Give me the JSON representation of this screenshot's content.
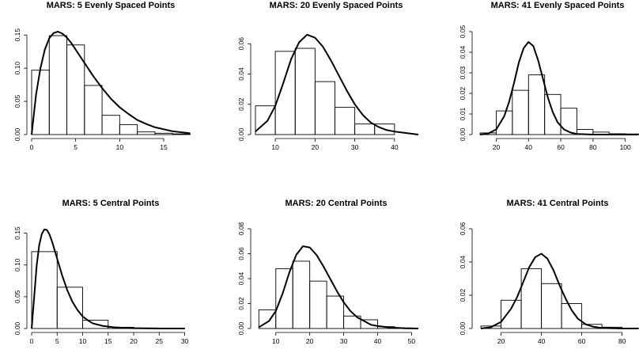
{
  "chart_data": [
    {
      "type": "bar",
      "title": "MARS: 5 Evenly Spaced Points",
      "xlim": [
        0,
        18.5
      ],
      "ylim": [
        0,
        0.155
      ],
      "xticks": [
        0,
        5,
        10,
        15
      ],
      "xtick_labels": [
        "0",
        "5",
        "10",
        "15"
      ],
      "yticks": [
        0,
        0.05,
        0.1,
        0.15
      ],
      "ytick_labels": [
        "0.00",
        "0.05",
        "0.10",
        "0.15"
      ],
      "histogram": {
        "bin_edges": [
          0,
          2,
          4,
          6,
          8,
          10,
          12,
          14,
          16,
          18
        ],
        "density": [
          0.097,
          0.149,
          0.135,
          0.074,
          0.029,
          0.015,
          0.004,
          0.002,
          0.001
        ]
      },
      "curve": {
        "x": [
          0,
          0.5,
          1,
          1.5,
          2,
          2.5,
          3,
          3.5,
          4,
          4.5,
          5,
          6,
          7,
          8,
          9,
          10,
          11,
          12,
          13,
          14,
          16,
          18
        ],
        "y": [
          0,
          0.06,
          0.1,
          0.128,
          0.145,
          0.153,
          0.155,
          0.152,
          0.146,
          0.138,
          0.128,
          0.108,
          0.088,
          0.07,
          0.054,
          0.041,
          0.031,
          0.022,
          0.016,
          0.011,
          0.005,
          0.002
        ]
      }
    },
    {
      "type": "bar",
      "title": "MARS: 20 Evenly Spaced Points",
      "xlim": [
        5,
        46
      ],
      "ylim": [
        0,
        0.068
      ],
      "xticks": [
        10,
        20,
        30,
        40
      ],
      "xtick_labels": [
        "10",
        "20",
        "30",
        "40"
      ],
      "yticks": [
        0,
        0.02,
        0.04,
        0.06
      ],
      "ytick_labels": [
        "0.00",
        "0.02",
        "0.04",
        "0.06"
      ],
      "histogram": {
        "bin_edges": [
          5,
          10,
          15,
          20,
          25,
          30,
          35,
          40
        ],
        "density": [
          0.019,
          0.055,
          0.057,
          0.035,
          0.018,
          0.007,
          0.007
        ]
      },
      "curve": {
        "x": [
          5,
          8,
          10,
          12,
          14,
          16,
          18,
          20,
          22,
          24,
          26,
          28,
          30,
          32,
          34,
          36,
          38,
          40,
          43,
          46
        ],
        "y": [
          0.002,
          0.009,
          0.019,
          0.034,
          0.05,
          0.061,
          0.066,
          0.064,
          0.058,
          0.049,
          0.039,
          0.029,
          0.02,
          0.013,
          0.008,
          0.005,
          0.003,
          0.002,
          0.001,
          0.0
        ]
      }
    },
    {
      "type": "bar",
      "title": "MARS: 41 Evenly Spaced Points",
      "xlim": [
        8,
        108
      ],
      "ylim": [
        0,
        0.05
      ],
      "xticks": [
        20,
        40,
        60,
        80,
        100
      ],
      "xtick_labels": [
        "20",
        "40",
        "60",
        "80",
        "100"
      ],
      "yticks": [
        0,
        0.01,
        0.02,
        0.03,
        0.04,
        0.05
      ],
      "ytick_labels": [
        "0.00",
        "0.01",
        "0.02",
        "0.03",
        "0.04",
        "0.05"
      ],
      "histogram": {
        "bin_edges": [
          10,
          20,
          30,
          40,
          50,
          60,
          70,
          80,
          90,
          100,
          110
        ],
        "density": [
          0.0008,
          0.0115,
          0.0215,
          0.029,
          0.0195,
          0.0128,
          0.0025,
          0.0012,
          0.0004,
          0.0003
        ]
      },
      "curve": {
        "x": [
          10,
          15,
          20,
          25,
          28,
          31,
          34,
          37,
          40,
          43,
          46,
          49,
          52,
          55,
          58,
          62,
          66,
          70,
          80,
          90,
          100,
          108
        ],
        "y": [
          0.0,
          0.0005,
          0.0025,
          0.009,
          0.016,
          0.025,
          0.035,
          0.042,
          0.045,
          0.043,
          0.036,
          0.027,
          0.018,
          0.011,
          0.006,
          0.0025,
          0.001,
          0.0003,
          0.0,
          0.0,
          0.0,
          0.0
        ]
      }
    },
    {
      "type": "bar",
      "title": "MARS: 5 Central Points",
      "xlim": [
        0,
        31
      ],
      "ylim": [
        0,
        0.157
      ],
      "xticks": [
        0,
        5,
        10,
        15,
        20,
        25,
        30
      ],
      "xtick_labels": [
        "0",
        "5",
        "10",
        "15",
        "20",
        "25",
        "30"
      ],
      "yticks": [
        0,
        0.05,
        0.1,
        0.15
      ],
      "ytick_labels": [
        "0.00",
        "0.05",
        "0.10",
        "0.15"
      ],
      "histogram": {
        "bin_edges": [
          0,
          5,
          10,
          15,
          20,
          25,
          30
        ],
        "density": [
          0.121,
          0.065,
          0.013,
          0.002,
          0.0008,
          0.0004
        ]
      },
      "curve": {
        "x": [
          0,
          0.5,
          1,
          1.5,
          2,
          2.5,
          3,
          3.5,
          4,
          5,
          6,
          7,
          8,
          9,
          10,
          11,
          12,
          14,
          16,
          18,
          20,
          25,
          30
        ],
        "y": [
          0,
          0.05,
          0.1,
          0.132,
          0.149,
          0.156,
          0.155,
          0.148,
          0.137,
          0.11,
          0.083,
          0.06,
          0.042,
          0.029,
          0.019,
          0.013,
          0.008,
          0.004,
          0.002,
          0.001,
          0.0005,
          0.0,
          0.0
        ]
      }
    },
    {
      "type": "bar",
      "title": "MARS: 20 Central Points",
      "xlim": [
        4,
        52
      ],
      "ylim": [
        0,
        0.08
      ],
      "xticks": [
        10,
        20,
        30,
        40,
        50
      ],
      "xtick_labels": [
        "10",
        "20",
        "30",
        "40",
        "50"
      ],
      "yticks": [
        0,
        0.02,
        0.04,
        0.06,
        0.08
      ],
      "ytick_labels": [
        "0.00",
        "0.02",
        "0.04",
        "0.06",
        "0.08"
      ],
      "histogram": {
        "bin_edges": [
          5,
          10,
          15,
          20,
          25,
          30,
          35,
          40,
          45,
          50
        ],
        "density": [
          0.015,
          0.048,
          0.054,
          0.038,
          0.026,
          0.01,
          0.007,
          0.0015,
          0.0005
        ]
      },
      "curve": {
        "x": [
          5,
          8,
          10,
          12,
          14,
          16,
          18,
          20,
          22,
          24,
          26,
          28,
          30,
          32,
          34,
          36,
          38,
          40,
          44,
          48,
          52
        ],
        "y": [
          0.001,
          0.006,
          0.014,
          0.028,
          0.045,
          0.059,
          0.066,
          0.065,
          0.059,
          0.05,
          0.04,
          0.03,
          0.021,
          0.014,
          0.009,
          0.006,
          0.003,
          0.002,
          0.0007,
          0.0002,
          0.0
        ]
      }
    },
    {
      "type": "bar",
      "title": "MARS: 41 Central Points",
      "xlim": [
        8,
        88
      ],
      "ylim": [
        0,
        0.06
      ],
      "xticks": [
        20,
        40,
        60,
        80
      ],
      "xtick_labels": [
        "20",
        "40",
        "60",
        "80"
      ],
      "yticks": [
        0,
        0.02,
        0.04,
        0.06
      ],
      "ytick_labels": [
        "0.00",
        "0.02",
        "0.04",
        "0.06"
      ],
      "histogram": {
        "bin_edges": [
          10,
          20,
          30,
          40,
          50,
          60,
          70,
          80,
          90
        ],
        "density": [
          0.0015,
          0.017,
          0.036,
          0.027,
          0.015,
          0.0025,
          0.0008,
          0.0002
        ]
      },
      "curve": {
        "x": [
          10,
          15,
          20,
          25,
          28,
          31,
          34,
          37,
          40,
          43,
          46,
          49,
          52,
          55,
          58,
          62,
          66,
          70,
          80,
          88
        ],
        "y": [
          0.0,
          0.0008,
          0.004,
          0.012,
          0.019,
          0.028,
          0.037,
          0.043,
          0.045,
          0.042,
          0.035,
          0.026,
          0.018,
          0.011,
          0.006,
          0.0025,
          0.001,
          0.0003,
          0.0,
          0.0
        ]
      }
    }
  ]
}
